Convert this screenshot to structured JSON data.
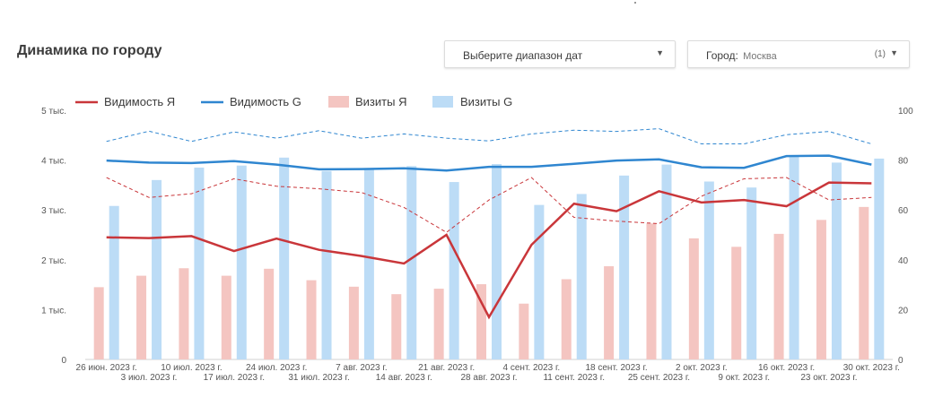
{
  "header": {
    "title": "Динамика по городу",
    "date_range_label": "Выберите диапазон дат",
    "city_label": "Город:",
    "city_value": "Москва",
    "city_count": "(1)"
  },
  "colors": {
    "vis_yandex": "#c9363a",
    "vis_google": "#2f86d0",
    "visits_yandex": "#f4c5c1",
    "visits_google": "#bcdcf6"
  },
  "chart_data": {
    "type": "bar",
    "categories": [
      "26 июн. 2023 г.",
      "3 июл. 2023 г.",
      "10 июл. 2023 г.",
      "17 июл. 2023 г.",
      "24 июл. 2023 г.",
      "31 июл. 2023 г.",
      "7 авг. 2023 г.",
      "14 авг. 2023 г.",
      "21 авг. 2023 г.",
      "28 авг. 2023 г.",
      "4 сент. 2023 г.",
      "11 сент. 2023 г.",
      "18 сент. 2023 г.",
      "25 сент. 2023 г.",
      "2 окт. 2023 г.",
      "9 окт. 2023 г.",
      "16 окт. 2023 г.",
      "23 окт. 2023 г.",
      "30 окт. 2023 г."
    ],
    "left_ticks": [
      "0",
      "1 тыс.",
      "2 тыс.",
      "3 тыс.",
      "4 тыс.",
      "5 тыс."
    ],
    "right_ticks": [
      "0",
      "20",
      "40",
      "60",
      "80",
      "100"
    ],
    "ylim_left": [
      0,
      5000
    ],
    "ylim_right": [
      0,
      100
    ],
    "legend_position": "top-left",
    "series": [
      {
        "name": "Видимость Я",
        "kind": "line",
        "axis": "right",
        "values": [
          49,
          48.7,
          49.5,
          43.5,
          48.5,
          44,
          41.5,
          38.5,
          50,
          17,
          46,
          62.5,
          59.5,
          67.5,
          63,
          64,
          61.5,
          71,
          70.7
        ]
      },
      {
        "name": "Видимость G",
        "kind": "line",
        "axis": "right",
        "values": [
          79.8,
          79,
          78.8,
          79.6,
          78.2,
          76.3,
          76.4,
          76.7,
          75.8,
          77.3,
          77.3,
          78.5,
          79.8,
          80.3,
          77.1,
          76.9,
          81.6,
          81.8,
          78.2
        ]
      },
      {
        "name": "Визиты Я",
        "kind": "bar",
        "axis": "left",
        "values": [
          1450,
          1680,
          1830,
          1680,
          1820,
          1590,
          1460,
          1310,
          1420,
          1510,
          1120,
          1610,
          1870,
          2730,
          2430,
          2260,
          2520,
          2800,
          3060
        ]
      },
      {
        "name": "Визиты G",
        "kind": "bar",
        "axis": "left",
        "values": [
          3080,
          3600,
          3850,
          3890,
          4050,
          3780,
          3830,
          3880,
          3560,
          3920,
          3100,
          3320,
          3690,
          3910,
          3570,
          3450,
          4080,
          3950,
          4030
        ]
      }
    ],
    "reference_lines": [
      {
        "axis": "right",
        "color": "vis_google",
        "values": [
          87.5,
          91.6,
          87.5,
          91.3,
          88.8,
          91.8,
          88.8,
          90.5,
          88.8,
          87.7,
          90.5,
          92,
          91.5,
          92.6,
          86.5,
          86.5,
          90.2,
          91.5,
          86.5
        ]
      },
      {
        "axis": "right",
        "color": "vis_yandex",
        "values": [
          73,
          65,
          66.5,
          72.5,
          69.5,
          68.5,
          67,
          61,
          51,
          64,
          73,
          57,
          55.5,
          54.5,
          65.5,
          72.5,
          73,
          64,
          65
        ]
      }
    ]
  }
}
